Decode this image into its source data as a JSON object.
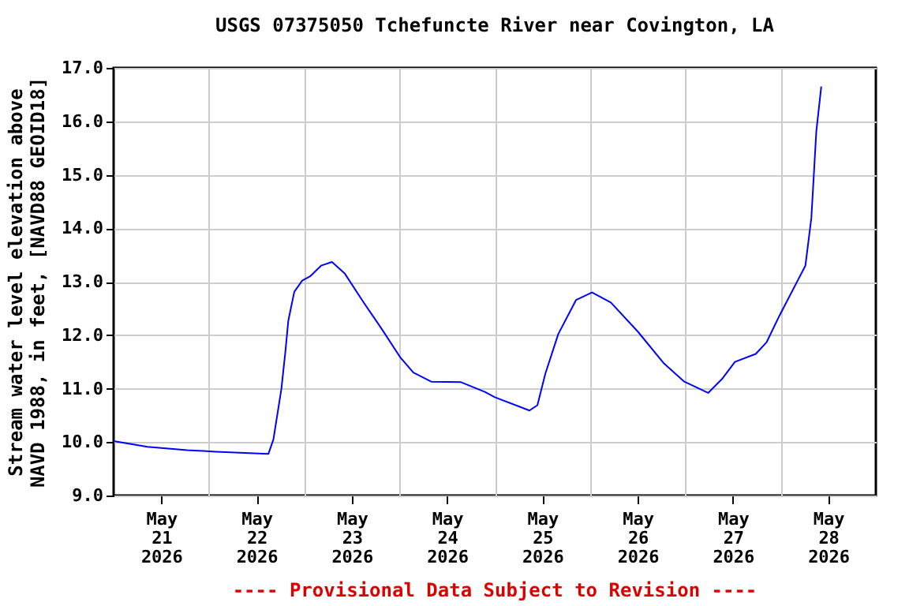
{
  "chart_data": {
    "type": "line",
    "title": "USGS 07375050 Tchefuncte River near Covington, LA",
    "ylabel": "Stream water level elevation above NAVD 1988, in feet, [NAVD88 GEOID18]",
    "annotations": [
      "---- Provisional Data Subject to Revision ----"
    ],
    "x": [
      "2026-05-21T00:00",
      "2026-05-21T08:30",
      "2026-05-21T18:30",
      "2026-05-22T01:45",
      "2026-05-22T15:00",
      "2026-05-22T16:15",
      "2026-05-22T18:15",
      "2026-05-22T19:15",
      "2026-05-22T20:00",
      "2026-05-22T21:30",
      "2026-05-22T23:30",
      "2026-05-23T01:30",
      "2026-05-23T04:15",
      "2026-05-23T07:00",
      "2026-05-23T10:15",
      "2026-05-23T15:00",
      "2026-05-23T19:30",
      "2026-05-24T00:15",
      "2026-05-24T03:30",
      "2026-05-24T08:00",
      "2026-05-24T15:30",
      "2026-05-24T21:30",
      "2026-05-25T00:00",
      "2026-05-25T08:45",
      "2026-05-25T10:45",
      "2026-05-25T12:45",
      "2026-05-25T16:00",
      "2026-05-25T20:30",
      "2026-05-26T00:30",
      "2026-05-26T05:15",
      "2026-05-26T12:00",
      "2026-05-26T18:30",
      "2026-05-26T23:45",
      "2026-05-27T05:45",
      "2026-05-27T09:15",
      "2026-05-27T12:30",
      "2026-05-27T17:45",
      "2026-05-27T20:30",
      "2026-05-27T23:45",
      "2026-05-28T06:15",
      "2026-05-28T07:45",
      "2026-05-28T09:00",
      "2026-05-28T10:15"
    ],
    "series": [
      {
        "color": "#0000ff",
        "values": [
          10.02,
          9.91,
          9.85,
          9.82,
          9.78,
          10.05,
          10.99,
          11.68,
          12.27,
          12.81,
          13.02,
          13.1,
          13.3,
          13.37,
          13.15,
          12.61,
          12.12,
          11.58,
          11.3,
          11.13,
          11.12,
          10.94,
          10.84,
          10.59,
          10.69,
          11.28,
          12.02,
          12.66,
          12.8,
          12.61,
          12.07,
          11.48,
          11.13,
          10.92,
          11.18,
          11.5,
          11.65,
          11.87,
          12.37,
          13.3,
          14.19,
          15.81,
          16.65
        ]
      }
    ],
    "xlim": [
      "2026-05-21T00:00",
      "2026-05-29T00:00"
    ],
    "xticks": [
      {
        "value": "2026-05-21T12:00",
        "label": "May 21 2026"
      },
      {
        "value": "2026-05-22T00:00",
        "label": null
      },
      {
        "value": "2026-05-22T12:00",
        "label": "May 22 2026"
      },
      {
        "value": "2026-05-23T00:00",
        "label": null
      },
      {
        "value": "2026-05-23T12:00",
        "label": "May 23 2026"
      },
      {
        "value": "2026-05-24T00:00",
        "label": null
      },
      {
        "value": "2026-05-24T12:00",
        "label": "May 24 2026"
      },
      {
        "value": "2026-05-25T00:00",
        "label": null
      },
      {
        "value": "2026-05-25T12:00",
        "label": "May 25 2026"
      },
      {
        "value": "2026-05-26T00:00",
        "label": null
      },
      {
        "value": "2026-05-26T12:00",
        "label": "May 26 2026"
      },
      {
        "value": "2026-05-27T00:00",
        "label": null
      },
      {
        "value": "2026-05-27T12:00",
        "label": "May 27 2026"
      },
      {
        "value": "2026-05-28T00:00",
        "label": null
      },
      {
        "value": "2026-05-28T12:00",
        "label": "May 28 2026"
      }
    ],
    "ylim": [
      9,
      17
    ],
    "yticks": [
      {
        "value": 9,
        "label": "9.0"
      },
      {
        "value": 10,
        "label": "10.0"
      },
      {
        "value": 11,
        "label": "11.0"
      },
      {
        "value": 12,
        "label": "12.0"
      },
      {
        "value": 13,
        "label": "13.0"
      },
      {
        "value": 14,
        "label": "14.0"
      },
      {
        "value": 15,
        "label": "15.0"
      },
      {
        "value": 16,
        "label": "16.0"
      },
      {
        "value": 17,
        "label": "17.0"
      }
    ],
    "grid": true,
    "marker": "none",
    "line_style": "solid"
  }
}
